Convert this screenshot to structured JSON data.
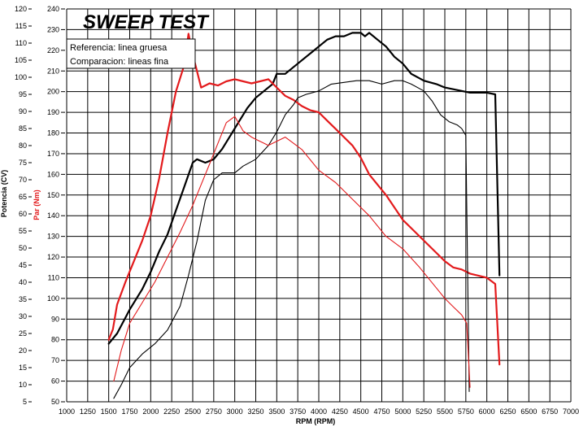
{
  "chart_data": {
    "type": "line",
    "title": "SWEEP TEST",
    "xlabel": "RPM (RPM)",
    "ylabel_left": "Potencia (CV)",
    "ylabel_right": "Par (Nm)",
    "xlim": [
      1000,
      7000
    ],
    "ylim_left": [
      5,
      120
    ],
    "ylim_right": [
      50,
      240
    ],
    "x_ticks": [
      1000,
      1250,
      1500,
      1750,
      2000,
      2250,
      2500,
      2750,
      3000,
      3250,
      3500,
      3750,
      4000,
      4250,
      4500,
      4750,
      5000,
      5250,
      5500,
      5750,
      6000,
      6250,
      6500,
      6750,
      7000
    ],
    "y_left_ticks": [
      5,
      10,
      15,
      20,
      25,
      30,
      35,
      40,
      45,
      50,
      55,
      60,
      65,
      70,
      75,
      80,
      85,
      90,
      95,
      100,
      105,
      110,
      115,
      120
    ],
    "y_right_ticks": [
      50,
      60,
      70,
      80,
      90,
      100,
      110,
      120,
      130,
      140,
      150,
      160,
      170,
      180,
      190,
      200,
      210,
      220,
      230,
      240
    ],
    "grid": true,
    "legend": {
      "position": "top-left",
      "entries": [
        "Referencia: linea gruesa",
        "Comparacion: lineas fina"
      ]
    },
    "series": [
      {
        "role": "power-reference",
        "axis": "left",
        "color": "#000000",
        "width": "thick",
        "x": [
          1500,
          1600,
          1750,
          1900,
          2000,
          2100,
          2200,
          2300,
          2400,
          2500,
          2550,
          2650,
          2750,
          2850,
          2950,
          3050,
          3150,
          3250,
          3350,
          3450,
          3500,
          3600,
          3750,
          3900,
          4000,
          4100,
          4200,
          4300,
          4400,
          4500,
          4550,
          4600,
          4700,
          4800,
          4900,
          5000,
          5100,
          5250,
          5400,
          5500,
          5600,
          5700,
          5800,
          5900,
          6000,
          6100,
          6150
        ],
        "y": [
          22,
          25,
          32,
          38,
          43,
          49,
          54,
          61,
          68,
          75,
          76,
          75,
          76,
          79,
          83,
          87,
          91,
          94,
          96,
          98,
          101,
          101,
          104,
          107,
          109,
          111,
          112,
          112,
          113,
          113,
          112,
          113,
          111,
          109,
          106,
          104,
          101,
          99,
          98,
          97,
          96.5,
          96,
          95.5,
          95.5,
          95.5,
          95,
          42
        ]
      },
      {
        "role": "torque-reference",
        "axis": "right",
        "color": "#e31a1c",
        "width": "thick",
        "x": [
          1500,
          1550,
          1600,
          1700,
          1800,
          1900,
          2000,
          2100,
          2200,
          2300,
          2400,
          2450,
          2500,
          2550,
          2600,
          2650,
          2700,
          2800,
          2900,
          3000,
          3100,
          3200,
          3300,
          3400,
          3500,
          3600,
          3700,
          3800,
          3900,
          4000,
          4100,
          4200,
          4300,
          4400,
          4500,
          4600,
          4800,
          5000,
          5200,
          5400,
          5500,
          5600,
          5700,
          5800,
          5900,
          6000,
          6100,
          6150
        ],
        "y": [
          80,
          85,
          97,
          108,
          118,
          128,
          140,
          158,
          180,
          200,
          213,
          228,
          218,
          210,
          202,
          203,
          204,
          203,
          205,
          206,
          205,
          204,
          205,
          206,
          202,
          198,
          196,
          193,
          191,
          190,
          186,
          182,
          178,
          174,
          168,
          160,
          150,
          138,
          130,
          122,
          118,
          115,
          114,
          112,
          111,
          110,
          107,
          68
        ]
      },
      {
        "role": "power-comparison",
        "axis": "left",
        "color": "#000000",
        "width": "thin",
        "x": [
          1560,
          1650,
          1750,
          1900,
          2050,
          2200,
          2350,
          2450,
          2550,
          2650,
          2750,
          2850,
          3000,
          3100,
          3250,
          3400,
          3500,
          3600,
          3700,
          3750,
          3850,
          4000,
          4150,
          4300,
          4450,
          4600,
          4750,
          4900,
          5000,
          5100,
          5250,
          5350,
          5450,
          5550,
          5650,
          5700,
          5750,
          5790
        ],
        "y": [
          6,
          10,
          15,
          19,
          22,
          26,
          33,
          42,
          52,
          64,
          70,
          72,
          72,
          74,
          76,
          80,
          84,
          89,
          92,
          94,
          95,
          96,
          98,
          98.5,
          99,
          99,
          98,
          99,
          99,
          98,
          96,
          93,
          89,
          87,
          86,
          85,
          83,
          8
        ]
      },
      {
        "role": "torque-comparison",
        "axis": "right",
        "color": "#e31a1c",
        "width": "thin",
        "x": [
          1560,
          1650,
          1750,
          1900,
          2050,
          2200,
          2350,
          2500,
          2600,
          2700,
          2800,
          2900,
          3000,
          3100,
          3200,
          3300,
          3400,
          3500,
          3600,
          3700,
          3800,
          3900,
          4000,
          4200,
          4400,
          4600,
          4800,
          5000,
          5200,
          5400,
          5500,
          5600,
          5700,
          5760,
          5800
        ],
        "y": [
          60,
          75,
          88,
          98,
          108,
          120,
          132,
          145,
          155,
          165,
          175,
          185,
          188,
          181,
          178,
          176,
          174,
          176,
          178,
          175,
          172,
          167,
          162,
          156,
          148,
          140,
          130,
          124,
          115,
          105,
          100,
          96,
          92,
          88,
          57
        ]
      }
    ]
  }
}
